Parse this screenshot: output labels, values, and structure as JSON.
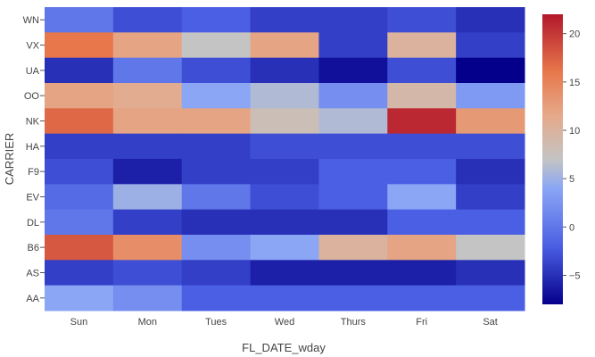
{
  "chart_data": {
    "type": "heatmap",
    "xlabel": "FL_DATE_wday",
    "ylabel": "CARRIER",
    "x": [
      "Sun",
      "Mon",
      "Tues",
      "Wed",
      "Thurs",
      "Fri",
      "Sat"
    ],
    "y": [
      "WN",
      "VX",
      "UA",
      "OO",
      "NK",
      "HA",
      "F9",
      "EV",
      "DL",
      "B6",
      "AS",
      "AA"
    ],
    "z": [
      [
        0,
        -3,
        -2,
        -4,
        -4,
        -3,
        -5
      ],
      [
        16,
        12,
        7,
        12,
        -4,
        10,
        -4
      ],
      [
        -5,
        0,
        -3,
        -5,
        -7,
        -3,
        -8
      ],
      [
        12,
        11,
        4,
        6,
        2,
        9,
        3
      ],
      [
        17,
        12,
        12,
        8,
        6,
        21,
        13
      ],
      [
        -4,
        -4,
        -4,
        -3,
        -3,
        -3,
        -3
      ],
      [
        -3,
        -6,
        -4,
        -4,
        -2,
        -2,
        -5
      ],
      [
        -1,
        5,
        0,
        -3,
        -2,
        4,
        -4
      ],
      [
        0,
        -4,
        -5,
        -5,
        -5,
        -2,
        -2
      ],
      [
        18,
        14,
        2,
        4,
        10,
        12,
        7
      ],
      [
        -4,
        -3,
        -4,
        -6,
        -6,
        -6,
        -5
      ],
      [
        4,
        2,
        -2,
        -2,
        -2,
        -2,
        -2
      ]
    ],
    "zmin": -8,
    "zmax": 22,
    "colorbar_ticks": [
      20,
      15,
      10,
      5,
      0,
      -5
    ],
    "colorscale": [
      [
        0.0,
        "#05008c"
      ],
      [
        0.2,
        "#4a5fe3"
      ],
      [
        0.4,
        "#8aa6f5"
      ],
      [
        0.5,
        "#c4c4c4"
      ],
      [
        0.65,
        "#e5a98a"
      ],
      [
        0.8,
        "#e8784c"
      ],
      [
        1.0,
        "#b2182b"
      ]
    ],
    "grid": false,
    "legend": "colorbar-right"
  }
}
